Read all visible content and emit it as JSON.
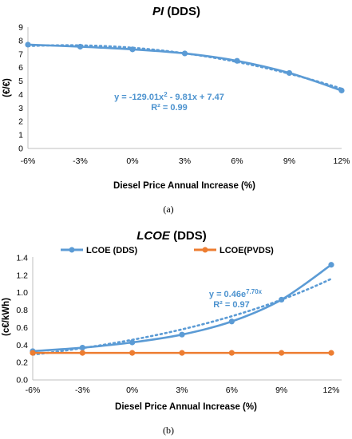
{
  "chart_data": [
    {
      "type": "line",
      "title_main": "PI",
      "title_suffix": "(DDS)",
      "xlabel": "Diesel Price Annual Increase (%)",
      "ylabel": "(€/€)",
      "categories": [
        "-6%",
        "-3%",
        "0%",
        "3%",
        "6%",
        "9%",
        "12%"
      ],
      "x": [
        -0.06,
        -0.03,
        0.0,
        0.03,
        0.06,
        0.09,
        0.12
      ],
      "series": [
        {
          "values": [
            7.7,
            7.55,
            7.35,
            7.05,
            6.5,
            5.6,
            4.3
          ],
          "color": "#5b9bd5"
        }
      ],
      "trendline": {
        "type": "polynomial",
        "a": -129.01,
        "b": -9.81,
        "c": 7.47,
        "style": "dotted",
        "color": "#5b9bd5"
      },
      "equation": {
        "line1": "y = -129.01x",
        "line1_sup": "2",
        "line1_rest": " - 9.81x + 7.47",
        "line2": "R² = 0.99"
      },
      "ylim": [
        0,
        9
      ],
      "yticks": [
        "0",
        "1",
        "2",
        "3",
        "4",
        "5",
        "6",
        "7",
        "8",
        "9"
      ],
      "grid": false,
      "caption": "(a)"
    },
    {
      "type": "line",
      "title_main": "LCOE",
      "title_suffix": "(DDS)",
      "xlabel": "Diesel Price Annual Increase (%)",
      "ylabel": "(c€/kWh)",
      "categories": [
        "-6%",
        "-3%",
        "0%",
        "3%",
        "6%",
        "9%",
        "12%"
      ],
      "x": [
        -0.06,
        -0.03,
        0.0,
        0.03,
        0.06,
        0.09,
        0.12
      ],
      "series": [
        {
          "name": "LCOE (DDS)",
          "values": [
            0.33,
            0.37,
            0.43,
            0.52,
            0.67,
            0.92,
            1.32
          ],
          "color": "#5b9bd5"
        },
        {
          "name": "LCOE(PVDS)",
          "values": [
            0.31,
            0.31,
            0.31,
            0.31,
            0.31,
            0.31,
            0.31
          ],
          "color": "#ed7d31"
        }
      ],
      "trendline": {
        "type": "exponential",
        "a": 0.46,
        "k": 7.7,
        "style": "dotted",
        "color": "#5b9bd5",
        "series": "LCOE (DDS)"
      },
      "equation": {
        "line1": "y = 0.46e",
        "line1_sup": "7.70x",
        "line2": "R² = 0.97"
      },
      "ylim": [
        0,
        1.4
      ],
      "yticks": [
        "0.0",
        "0.2",
        "0.4",
        "0.6",
        "0.8",
        "1.0",
        "1.2",
        "1.4"
      ],
      "legend": "top",
      "grid": false,
      "caption": "(b)"
    }
  ]
}
